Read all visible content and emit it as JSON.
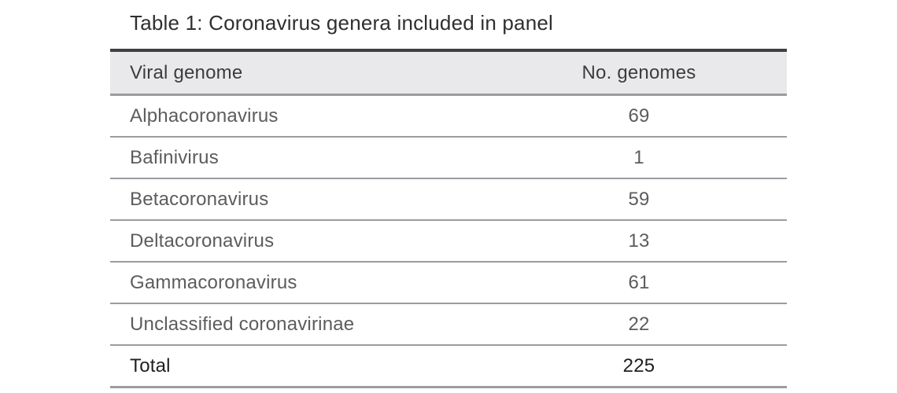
{
  "title": "Table 1: Coronavirus genera included in panel",
  "table": {
    "columns": [
      {
        "label": "Viral genome",
        "align": "left"
      },
      {
        "label": "No. genomes",
        "align": "center"
      }
    ],
    "rows": [
      {
        "genus": "Alphacoronavirus",
        "genomes": "69"
      },
      {
        "genus": "Bafinivirus",
        "genomes": "1"
      },
      {
        "genus": "Betacoronavirus",
        "genomes": "59"
      },
      {
        "genus": "Deltacoronavirus",
        "genomes": "13"
      },
      {
        "genus": "Gammacoronavirus",
        "genomes": "61"
      },
      {
        "genus": "Unclassified coronavirinae",
        "genomes": "22"
      }
    ],
    "total": {
      "label": "Total",
      "value": "225"
    }
  },
  "colors": {
    "header_bg": "#e9e9eb",
    "header_top_border": "#404043",
    "row_border": "#9b9ba1",
    "title_text": "#2f2f31",
    "header_text": "#3c3c3e",
    "body_text": "#5c5c5e",
    "total_text": "#1f1f21"
  }
}
